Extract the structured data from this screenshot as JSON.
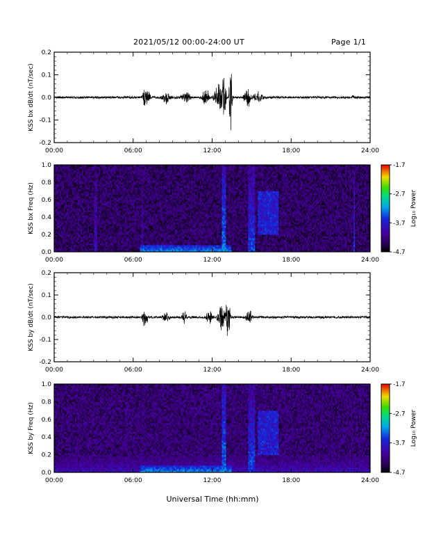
{
  "header": {
    "title": "2021/05/12  00:00-24:00 UT",
    "page": "Page 1/1"
  },
  "xaxis": {
    "label": "Universal Time (hh:mm)",
    "ticks": [
      "00:00",
      "06:00",
      "12:00",
      "18:00",
      "24:00"
    ],
    "range_hours": [
      0,
      24
    ]
  },
  "colorbar": {
    "label": "Log₁₀ Power",
    "ticks": [
      "-1.7",
      "-2.7",
      "-3.7",
      "-4.7"
    ],
    "range": [
      -4.7,
      -1.7
    ],
    "colormap": "rainbow (black-purple-blue-cyan-green-yellow-red)"
  },
  "chart_data": [
    {
      "id": "panel-1",
      "type": "line",
      "ylabel": "KSS bx dB/dt (nT/sec)",
      "ylim": [
        -0.2,
        0.2
      ],
      "yticks": [
        "0.2",
        "0.1",
        "0.0",
        "-0.1",
        "-0.2"
      ],
      "xlim_hours": [
        0,
        24
      ],
      "series": [
        {
          "baseline": 0.0,
          "noise_amplitude": 0.005,
          "bursts": [
            {
              "center_h": 7.0,
              "width_h": 0.4,
              "amplitude": 0.06
            },
            {
              "center_h": 8.5,
              "width_h": 0.5,
              "amplitude": 0.035
            },
            {
              "center_h": 10.0,
              "width_h": 0.6,
              "amplitude": 0.03
            },
            {
              "center_h": 11.5,
              "width_h": 0.4,
              "amplitude": 0.05
            },
            {
              "center_h": 12.5,
              "width_h": 0.5,
              "amplitude": 0.07
            },
            {
              "center_h": 12.9,
              "width_h": 0.25,
              "amplitude": 0.12
            },
            {
              "center_h": 13.4,
              "width_h": 0.15,
              "amplitude": 0.2
            },
            {
              "center_h": 14.7,
              "width_h": 0.4,
              "amplitude": 0.05
            },
            {
              "center_h": 15.5,
              "width_h": 0.5,
              "amplitude": 0.035
            },
            {
              "center_h": 22.7,
              "width_h": 0.15,
              "amplitude": 0.015
            }
          ]
        }
      ]
    },
    {
      "id": "panel-2",
      "type": "heatmap",
      "ylabel": "KSS bx Freq (Hz)",
      "ylim": [
        0,
        1
      ],
      "yticks": [
        "1.0",
        "0.8",
        "0.6",
        "0.4",
        "0.2",
        "0.0"
      ],
      "xlim_hours": [
        0,
        24
      ],
      "zlim": [
        -4.7,
        -1.7
      ],
      "background_level": -4.35,
      "features": [
        {
          "kind": "low-freq band",
          "from_h": 6.5,
          "to_h": 13.5,
          "fmax": 0.08,
          "level": -3.2
        },
        {
          "kind": "column",
          "center_h": 3.2,
          "width_h": 0.2,
          "level": -3.8
        },
        {
          "kind": "column",
          "center_h": 6.7,
          "width_h": 0.15,
          "level": -3.9
        },
        {
          "kind": "column",
          "center_h": 12.9,
          "width_h": 0.35,
          "level": -3.3
        },
        {
          "kind": "column",
          "center_h": 15.0,
          "width_h": 0.6,
          "level": -3.5
        },
        {
          "kind": "column",
          "center_h": 22.8,
          "width_h": 0.15,
          "level": -3.6
        },
        {
          "kind": "patch",
          "from_h": 15.5,
          "to_h": 17.0,
          "fmin": 0.2,
          "fmax": 0.7,
          "level": -3.7
        }
      ]
    },
    {
      "id": "panel-3",
      "type": "line",
      "ylabel": "KSS by dB/dt (nT/sec)",
      "ylim": [
        -0.2,
        0.2
      ],
      "yticks": [
        "0.2",
        "0.1",
        "0.0",
        "-0.1",
        "-0.2"
      ],
      "xlim_hours": [
        0,
        24
      ],
      "series": [
        {
          "baseline": 0.0,
          "noise_amplitude": 0.005,
          "bursts": [
            {
              "center_h": 6.9,
              "width_h": 0.3,
              "amplitude": 0.05
            },
            {
              "center_h": 8.5,
              "width_h": 0.4,
              "amplitude": 0.03
            },
            {
              "center_h": 9.9,
              "width_h": 0.3,
              "amplitude": 0.04
            },
            {
              "center_h": 11.8,
              "width_h": 0.4,
              "amplitude": 0.04
            },
            {
              "center_h": 12.7,
              "width_h": 0.4,
              "amplitude": 0.08
            },
            {
              "center_h": 13.2,
              "width_h": 0.25,
              "amplitude": 0.12
            },
            {
              "center_h": 14.8,
              "width_h": 0.4,
              "amplitude": 0.04
            }
          ]
        }
      ]
    },
    {
      "id": "panel-4",
      "type": "heatmap",
      "ylabel": "KSS by Freq (Hz)",
      "ylim": [
        0,
        1
      ],
      "yticks": [
        "1.0",
        "0.8",
        "0.6",
        "0.4",
        "0.2",
        "0.0"
      ],
      "xlim_hours": [
        0,
        24
      ],
      "zlim": [
        -4.7,
        -1.7
      ],
      "background_level": -4.3,
      "features": [
        {
          "kind": "low-freq band",
          "from_h": 0,
          "to_h": 24,
          "fmax": 0.2,
          "level": -3.9
        },
        {
          "kind": "low-freq band",
          "from_h": 6.5,
          "to_h": 13.5,
          "fmax": 0.08,
          "level": -3.2
        },
        {
          "kind": "column",
          "center_h": 12.9,
          "width_h": 0.35,
          "level": -3.3
        },
        {
          "kind": "column",
          "center_h": 15.0,
          "width_h": 0.6,
          "level": -3.5
        },
        {
          "kind": "patch",
          "from_h": 15.5,
          "to_h": 17.0,
          "fmin": 0.2,
          "fmax": 0.7,
          "level": -3.7
        }
      ]
    }
  ]
}
